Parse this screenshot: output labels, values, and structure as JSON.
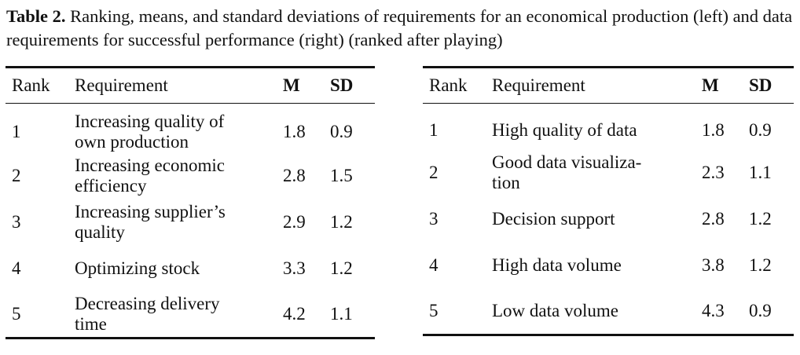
{
  "caption": {
    "label": "Table 2.",
    "text": " Ranking, means, and standard deviations of requirements for an economical production (left) and data requirements for successful performance (right) (ranked after playing)"
  },
  "headers": {
    "rank": "Rank",
    "requirement": "Requirement",
    "m": "M",
    "sd": "SD"
  },
  "left_table": [
    {
      "rank": "1",
      "requirement_lines": [
        "Increasing quality of",
        "own production"
      ],
      "m": "1.8",
      "sd": "0.9"
    },
    {
      "rank": "2",
      "requirement_lines": [
        "Increasing economic",
        "efficiency"
      ],
      "m": "2.8",
      "sd": "1.5"
    },
    {
      "rank": "3",
      "requirement_lines": [
        "Increasing supplier’s",
        "quality"
      ],
      "m": "2.9",
      "sd": "1.2"
    },
    {
      "rank": "4",
      "requirement_lines": [
        "Optimizing stock"
      ],
      "m": "3.3",
      "sd": "1.2"
    },
    {
      "rank": "5",
      "requirement_lines": [
        "Decreasing delivery",
        "time"
      ],
      "m": "4.2",
      "sd": "1.1"
    }
  ],
  "right_table": [
    {
      "rank": "1",
      "requirement_lines": [
        "High quality of data"
      ],
      "m": "1.8",
      "sd": "0.9"
    },
    {
      "rank": "2",
      "requirement_lines": [
        "Good data visualiza-",
        "tion"
      ],
      "m": "2.3",
      "sd": "1.1"
    },
    {
      "rank": "3",
      "requirement_lines": [
        "Decision support"
      ],
      "m": "2.8",
      "sd": "1.2"
    },
    {
      "rank": "4",
      "requirement_lines": [
        "High data volume"
      ],
      "m": "3.8",
      "sd": "1.2"
    },
    {
      "rank": "5",
      "requirement_lines": [
        "Low data volume"
      ],
      "m": "4.3",
      "sd": "0.9"
    }
  ]
}
